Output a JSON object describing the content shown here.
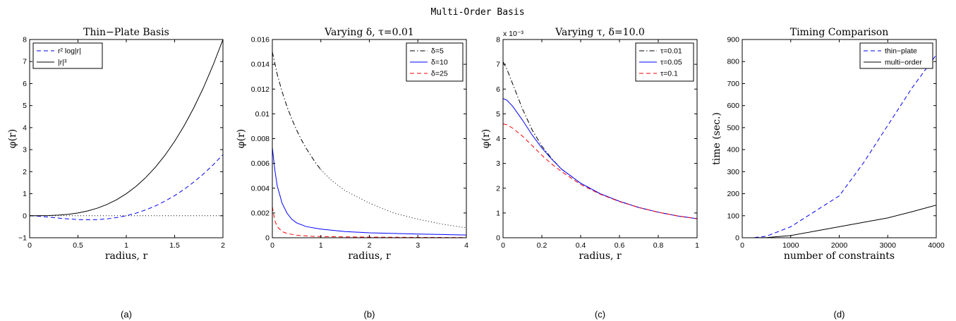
{
  "figure": {
    "suptitle": "Multi-Order Basis"
  },
  "chart_data": [
    {
      "type": "line",
      "caption": "(a)",
      "title": "Thin−Plate Basis",
      "xlabel": "radius, r",
      "ylabel": "φ(r)",
      "xlim": [
        0,
        2
      ],
      "ylim": [
        -1,
        8
      ],
      "xticks": [
        0,
        0.5,
        1,
        1.5,
        2
      ],
      "xtick_labels": [
        "0",
        "0.5",
        "1",
        "1.5",
        "2"
      ],
      "yticks": [
        -1,
        0,
        1,
        2,
        3,
        4,
        5,
        6,
        7,
        8
      ],
      "ytick_labels": [
        "−1",
        "0",
        "1",
        "2",
        "3",
        "4",
        "5",
        "6",
        "7",
        "8"
      ],
      "exponent_label": "",
      "legend_position": "top-left",
      "series": [
        {
          "name": "r² log|r|",
          "color": "#0000ff",
          "dash": "6,4",
          "x": [
            0.0,
            0.1,
            0.2,
            0.3,
            0.4,
            0.5,
            0.6,
            0.7,
            0.8,
            0.9,
            1.0,
            1.1,
            1.2,
            1.3,
            1.4,
            1.5,
            1.6,
            1.7,
            1.8,
            1.9,
            2.0
          ],
          "y": [
            0.0,
            -0.023,
            -0.064,
            -0.108,
            -0.147,
            -0.173,
            -0.184,
            -0.175,
            -0.143,
            -0.085,
            0.0,
            0.115,
            0.263,
            0.443,
            0.66,
            0.912,
            1.203,
            1.534,
            1.904,
            2.317,
            2.773
          ]
        },
        {
          "name": "|r|³",
          "color": "#000000",
          "dash": "",
          "x": [
            0.0,
            0.1,
            0.2,
            0.3,
            0.4,
            0.5,
            0.6,
            0.7,
            0.8,
            0.9,
            1.0,
            1.1,
            1.2,
            1.3,
            1.4,
            1.5,
            1.6,
            1.7,
            1.8,
            1.9,
            2.0
          ],
          "y": [
            0.0,
            0.001,
            0.008,
            0.027,
            0.064,
            0.125,
            0.216,
            0.343,
            0.512,
            0.729,
            1.0,
            1.331,
            1.728,
            2.197,
            2.744,
            3.375,
            4.096,
            4.913,
            5.832,
            6.859,
            8.0
          ]
        },
        {
          "name": "",
          "color": "#000000",
          "dash": "1,3",
          "legend": false,
          "x": [
            0,
            2
          ],
          "y": [
            0,
            0
          ]
        }
      ]
    },
    {
      "type": "line",
      "caption": "(b)",
      "title": "Varying δ, τ=0.01",
      "xlabel": "radius, r",
      "ylabel": "φ(r)",
      "xlim": [
        0,
        4
      ],
      "ylim": [
        0,
        0.016
      ],
      "xticks": [
        0,
        1,
        2,
        3,
        4
      ],
      "xtick_labels": [
        "0",
        "1",
        "2",
        "3",
        "4"
      ],
      "yticks": [
        0,
        0.002,
        0.004,
        0.006,
        0.008,
        0.01,
        0.012,
        0.014,
        0.016
      ],
      "ytick_labels": [
        "0",
        "0.002",
        "0.004",
        "0.006",
        "0.008",
        "0.01",
        "0.012",
        "0.014",
        "0.016"
      ],
      "exponent_label": "",
      "legend_position": "top-right",
      "series": [
        {
          "name": "δ=5",
          "color": "#000000",
          "dash": "7,3,1.5,3",
          "x": [
            0.0,
            0.05,
            0.1,
            0.2,
            0.3,
            0.4,
            0.5,
            0.6,
            0.7,
            0.8,
            0.9,
            1.0
          ],
          "y": [
            0.015,
            0.0141,
            0.0132,
            0.0118,
            0.0106,
            0.0096,
            0.0087,
            0.0079,
            0.0072,
            0.0066,
            0.006,
            0.0055
          ]
        },
        {
          "name": "",
          "color": "#000000",
          "dash": "1,3",
          "legend": false,
          "x": [
            1.0,
            1.2,
            1.5,
            2.0,
            2.5,
            3.0,
            3.5,
            4.0
          ],
          "y": [
            0.0055,
            0.0047,
            0.0038,
            0.0028,
            0.002,
            0.0015,
            0.0011,
            0.0008
          ]
        },
        {
          "name": "δ=10",
          "color": "#0000ff",
          "dash": "",
          "x": [
            0.0,
            0.05,
            0.1,
            0.2,
            0.3,
            0.4,
            0.5,
            0.7,
            1.0,
            1.5,
            2.0,
            2.5,
            3.0,
            3.5,
            4.0
          ],
          "y": [
            0.0073,
            0.0055,
            0.0042,
            0.0028,
            0.002,
            0.0015,
            0.0012,
            0.0009,
            0.0007,
            0.0005,
            0.0004,
            0.00035,
            0.0003,
            0.00026,
            0.00022
          ]
        },
        {
          "name": "δ=25",
          "color": "#ff0000",
          "dash": "6,4",
          "x": [
            0.0,
            0.05,
            0.1,
            0.2,
            0.3,
            0.5,
            0.8,
            1.0,
            1.5,
            2.0,
            3.0,
            4.0
          ],
          "y": [
            0.0025,
            0.0014,
            0.0009,
            0.0005,
            0.00035,
            0.0002,
            0.00012,
            0.0001,
            7e-05,
            5e-05,
            3e-05,
            2e-05
          ]
        }
      ]
    },
    {
      "type": "line",
      "caption": "(c)",
      "title": "Varying τ, δ=10.0",
      "xlabel": "radius, r",
      "ylabel": "φ(r)",
      "xlim": [
        0,
        1
      ],
      "ylim": [
        0,
        8
      ],
      "xticks": [
        0,
        0.2,
        0.4,
        0.6,
        0.8,
        1
      ],
      "xtick_labels": [
        "0",
        "0.2",
        "0.4",
        "0.6",
        "0.8",
        "1"
      ],
      "yticks": [
        0,
        1,
        2,
        3,
        4,
        5,
        6,
        7,
        8
      ],
      "ytick_labels": [
        "0",
        "1",
        "2",
        "3",
        "4",
        "5",
        "6",
        "7",
        "8"
      ],
      "exponent_label": "x 10⁻³",
      "legend_position": "top-right",
      "series": [
        {
          "name": "τ=0.01",
          "color": "#000000",
          "dash": "7,3,1.5,3",
          "x": [
            0.0,
            0.02,
            0.05,
            0.1,
            0.15,
            0.2,
            0.25,
            0.3,
            0.4,
            0.5,
            0.6,
            0.7,
            0.8,
            0.9,
            1.0
          ],
          "y": [
            7.1,
            6.8,
            6.2,
            5.2,
            4.35,
            3.7,
            3.2,
            2.78,
            2.2,
            1.78,
            1.47,
            1.22,
            1.03,
            0.88,
            0.77
          ]
        },
        {
          "name": "τ=0.05",
          "color": "#0000ff",
          "dash": "",
          "x": [
            0.0,
            0.02,
            0.05,
            0.1,
            0.15,
            0.2,
            0.25,
            0.3,
            0.4,
            0.5,
            0.6,
            0.7,
            0.8,
            0.9,
            1.0
          ],
          "y": [
            5.62,
            5.55,
            5.3,
            4.75,
            4.15,
            3.62,
            3.18,
            2.78,
            2.2,
            1.78,
            1.47,
            1.22,
            1.03,
            0.88,
            0.77
          ]
        },
        {
          "name": "τ=0.1",
          "color": "#ff0000",
          "dash": "6,4",
          "x": [
            0.0,
            0.02,
            0.05,
            0.1,
            0.15,
            0.2,
            0.25,
            0.3,
            0.4,
            0.5,
            0.6,
            0.7,
            0.8,
            0.9,
            1.0
          ],
          "y": [
            4.6,
            4.56,
            4.42,
            4.1,
            3.72,
            3.33,
            2.98,
            2.68,
            2.15,
            1.76,
            1.46,
            1.22,
            1.03,
            0.88,
            0.77
          ]
        }
      ]
    },
    {
      "type": "line",
      "caption": "(d)",
      "title": "Timing Comparison",
      "xlabel": "number of constraints",
      "ylabel": "time (sec.)",
      "xlim": [
        0,
        4000
      ],
      "ylim": [
        0,
        900
      ],
      "xticks": [
        0,
        1000,
        2000,
        3000,
        4000
      ],
      "xtick_labels": [
        "0",
        "1000",
        "2000",
        "3000",
        "4000"
      ],
      "yticks": [
        0,
        100,
        200,
        300,
        400,
        500,
        600,
        700,
        800,
        900
      ],
      "ytick_labels": [
        "0",
        "100",
        "200",
        "300",
        "400",
        "500",
        "600",
        "700",
        "800",
        "900"
      ],
      "exponent_label": "",
      "legend_position": "top-right",
      "series": [
        {
          "name": "thin−plate",
          "color": "#0000ff",
          "dash": "6,4",
          "x": [
            250,
            500,
            1000,
            1500,
            2000,
            2500,
            3000,
            3500,
            4000
          ],
          "y": [
            1,
            7,
            50,
            120,
            190,
            340,
            510,
            680,
            830
          ]
        },
        {
          "name": "multi−order",
          "color": "#000000",
          "dash": "",
          "x": [
            250,
            500,
            1000,
            1500,
            2000,
            2500,
            3000,
            3500,
            4000
          ],
          "y": [
            0,
            1,
            10,
            30,
            50,
            70,
            90,
            118,
            148
          ]
        }
      ]
    }
  ]
}
